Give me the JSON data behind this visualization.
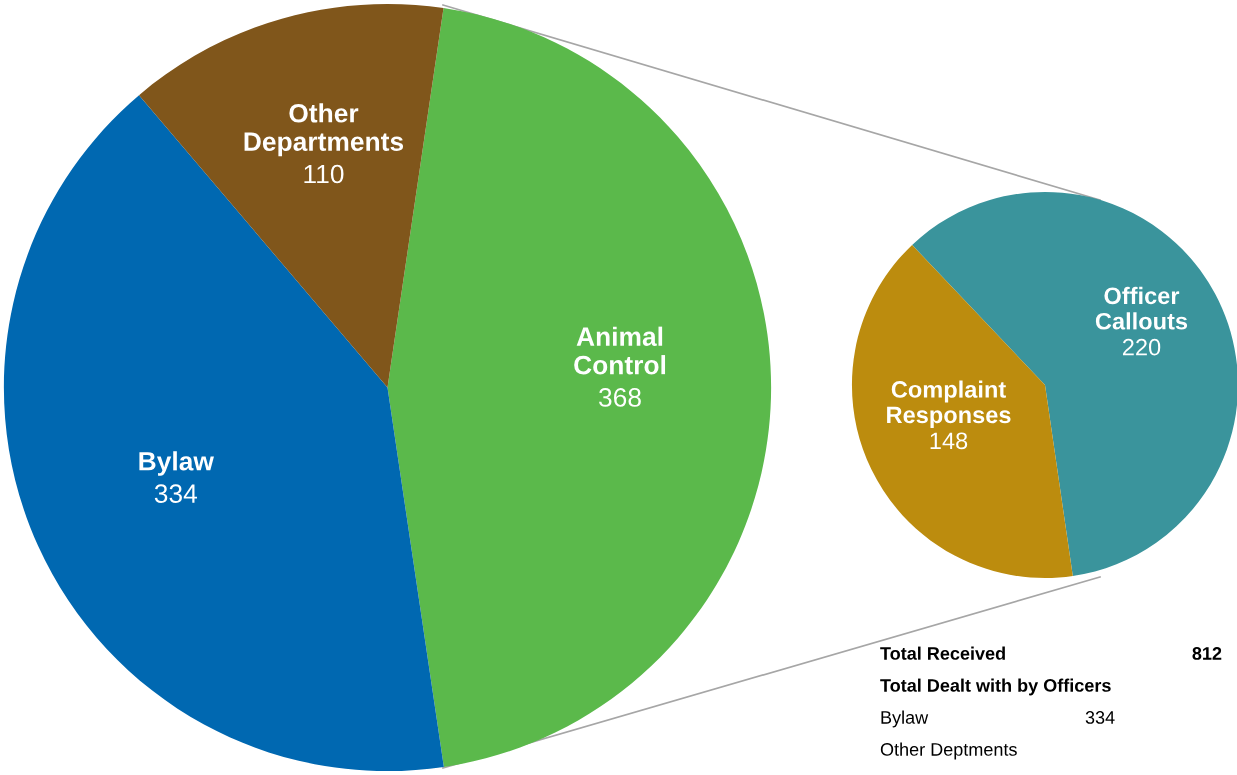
{
  "chart_data": [
    {
      "type": "pie",
      "categories": [
        "Animal Control",
        "Bylaw",
        "Other Departments"
      ],
      "values": [
        368,
        334,
        110
      ],
      "colors": [
        "#5bb94b",
        "#0068b1",
        "#80561b"
      ],
      "data_labels": true
    },
    {
      "type": "pie",
      "categories": [
        "Officer Callouts",
        "Complaint Responses"
      ],
      "values": [
        220,
        148
      ],
      "colors": [
        "#3a949c",
        "#bc8c0e"
      ],
      "data_labels": true
    },
    {
      "type": "other",
      "annotations": [
        "Total Received",
        "812",
        "Total Dealt with by Officers",
        "Bylaw",
        "334",
        "Other Deptments"
      ]
    }
  ]
}
